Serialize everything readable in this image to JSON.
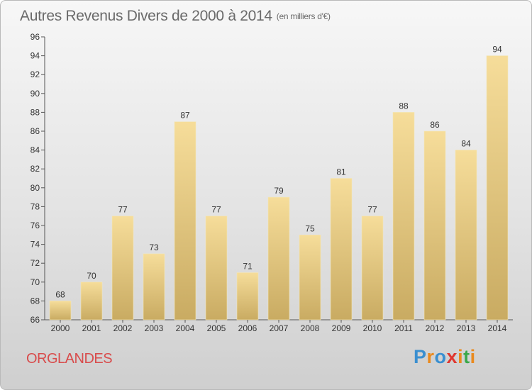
{
  "title": {
    "main": "Autres Revenus Divers de 2000 à 2014",
    "unit": "(en milliers d'€)"
  },
  "commune": "ORGLANDES",
  "logo": {
    "text": "Proxiti",
    "letters": [
      {
        "ch": "P",
        "color": "#3a8fd0"
      },
      {
        "ch": "r",
        "color": "#e98a1e"
      },
      {
        "ch": "o",
        "color": "#3a8fd0"
      },
      {
        "ch": "x",
        "color": "#e0372f"
      },
      {
        "ch": "i",
        "color": "#e98a1e"
      },
      {
        "ch": "t",
        "color": "#3aa84a"
      },
      {
        "ch": "i",
        "color": "#e98a1e"
      }
    ]
  },
  "colors": {
    "bar_top": "#f6dd9a",
    "bar_bottom": "#c9ab62",
    "axis": "#555555",
    "tick_label": "#333333",
    "title": "#6a6a6a",
    "commune": "#d84c4c"
  },
  "chart_data": {
    "type": "bar",
    "title": "Autres Revenus Divers de 2000 à 2014",
    "subtitle": "(en milliers d'€)",
    "categories": [
      "2000",
      "2001",
      "2002",
      "2003",
      "2004",
      "2005",
      "2006",
      "2007",
      "2008",
      "2009",
      "2010",
      "2011",
      "2012",
      "2013",
      "2014"
    ],
    "values": [
      68,
      70,
      77,
      73,
      87,
      77,
      71,
      79,
      75,
      81,
      77,
      88,
      86,
      84,
      94
    ],
    "ylim": [
      66,
      96
    ],
    "yticks": [
      66,
      68,
      70,
      72,
      74,
      76,
      78,
      80,
      82,
      84,
      86,
      88,
      90,
      92,
      94,
      96
    ],
    "xlabel": "",
    "ylabel": "",
    "grid": false,
    "data_labels": true
  }
}
